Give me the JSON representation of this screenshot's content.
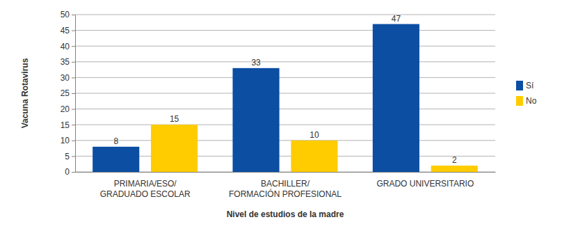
{
  "chart_data": {
    "type": "bar",
    "categories": [
      "PRIMARIA/ESO/\nGRADUADO ESCOLAR",
      "BACHILLER/\nFORMACIÓN PROFESIONAL",
      "GRADO UNIVERSITARIO"
    ],
    "series": [
      {
        "name": "Sí",
        "color": "#0b4ea2",
        "values": [
          8,
          33,
          47
        ]
      },
      {
        "name": "No",
        "color": "#ffcc00",
        "values": [
          15,
          10,
          2
        ]
      }
    ],
    "x_label": "Nivel de estudios de la madre",
    "y_label": "Vacuna Rotavirus",
    "ylim": [
      0,
      50
    ],
    "yticks": [
      0,
      5,
      10,
      15,
      20,
      25,
      30,
      35,
      40,
      45,
      50
    ],
    "grid": true,
    "legend": "right",
    "data_labels": true
  }
}
